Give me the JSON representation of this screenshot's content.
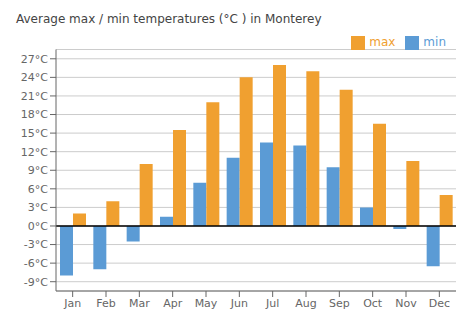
{
  "chart_data": {
    "type": "bar",
    "title": "Average max / min temperatures (°C ) in Monterey",
    "categories": [
      "Jan",
      "Feb",
      "Mar",
      "Apr",
      "May",
      "Jun",
      "Jul",
      "Aug",
      "Sep",
      "Oct",
      "Nov",
      "Dec"
    ],
    "series": [
      {
        "name": "min",
        "color": "#5b9bd5",
        "values": [
          -8,
          -7,
          -2.5,
          1.5,
          7,
          11,
          13.5,
          13,
          9.5,
          3,
          -0.5,
          -6.5
        ]
      },
      {
        "name": "max",
        "color": "#f0a030",
        "values": [
          2,
          4,
          10,
          15.5,
          20,
          24,
          26,
          25,
          22,
          16.5,
          10.5,
          5
        ]
      }
    ],
    "ylim": [
      -10.5,
      28.5
    ],
    "yticks": [
      {
        "value": -9,
        "label": "-9°C"
      },
      {
        "value": -6,
        "label": "-6°C"
      },
      {
        "value": -3,
        "label": "-3°C"
      },
      {
        "value": 0,
        "label": "0°C"
      },
      {
        "value": 3,
        "label": "3°C"
      },
      {
        "value": 6,
        "label": "6°C"
      },
      {
        "value": 9,
        "label": "9°C"
      },
      {
        "value": 12,
        "label": "12°C"
      },
      {
        "value": 15,
        "label": "15°C"
      },
      {
        "value": 18,
        "label": "18°C"
      },
      {
        "value": 21,
        "label": "21°C"
      },
      {
        "value": 24,
        "label": "24°C"
      },
      {
        "value": 27,
        "label": "27°C"
      }
    ],
    "grid": true,
    "legend": "upper right"
  }
}
